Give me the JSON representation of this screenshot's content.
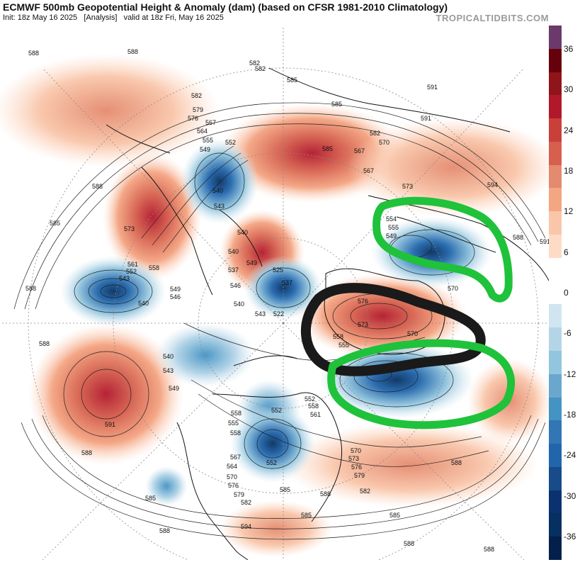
{
  "header": {
    "title": "ECMWF 500mb Geopotential Height & Anomaly (dam) (based on CFSR 1981-2010 Climatology)",
    "subtitle": "Init: 18z May 16 2025   [Analysis]   valid at 18z Fri, May 16 2025",
    "source": "TROPICALTIDBITS.COM"
  },
  "colorbar": {
    "labels": [
      "36",
      "30",
      "24",
      "18",
      "12",
      "6",
      "0",
      "-6",
      "-12",
      "-18",
      "-24",
      "-30",
      "-36"
    ],
    "colors": [
      "#6b3a6b",
      "#67000d",
      "#8e1519",
      "#b2182b",
      "#c9403a",
      "#d6604d",
      "#e48a6e",
      "#f4a582",
      "#f9c6aa",
      "#fddbc7",
      "#ffffff",
      "#ffffff",
      "#d1e5f0",
      "#b4d5e8",
      "#92c5de",
      "#6ba6cd",
      "#4393c3",
      "#3276b5",
      "#2166ac",
      "#174b8a",
      "#0b3270",
      "#053061",
      "#02204a"
    ]
  },
  "contour_labels": [
    "588",
    "585",
    "582",
    "579",
    "576",
    "573",
    "570",
    "567",
    "564",
    "561",
    "558",
    "555",
    "552",
    "549",
    "546",
    "543",
    "540",
    "537",
    "525",
    "522",
    "594",
    "591",
    "554",
    "555"
  ],
  "annotations": {
    "black_outline": "ridge over Greenland region",
    "green_outlines": [
      "trough over Scandinavia",
      "trough over North Atlantic"
    ]
  },
  "colors": {
    "warm_anomaly": "#d6604d",
    "cold_anomaly": "#2166ac",
    "highlight_black": "#1a1a1a",
    "highlight_green": "#1fc23a"
  }
}
